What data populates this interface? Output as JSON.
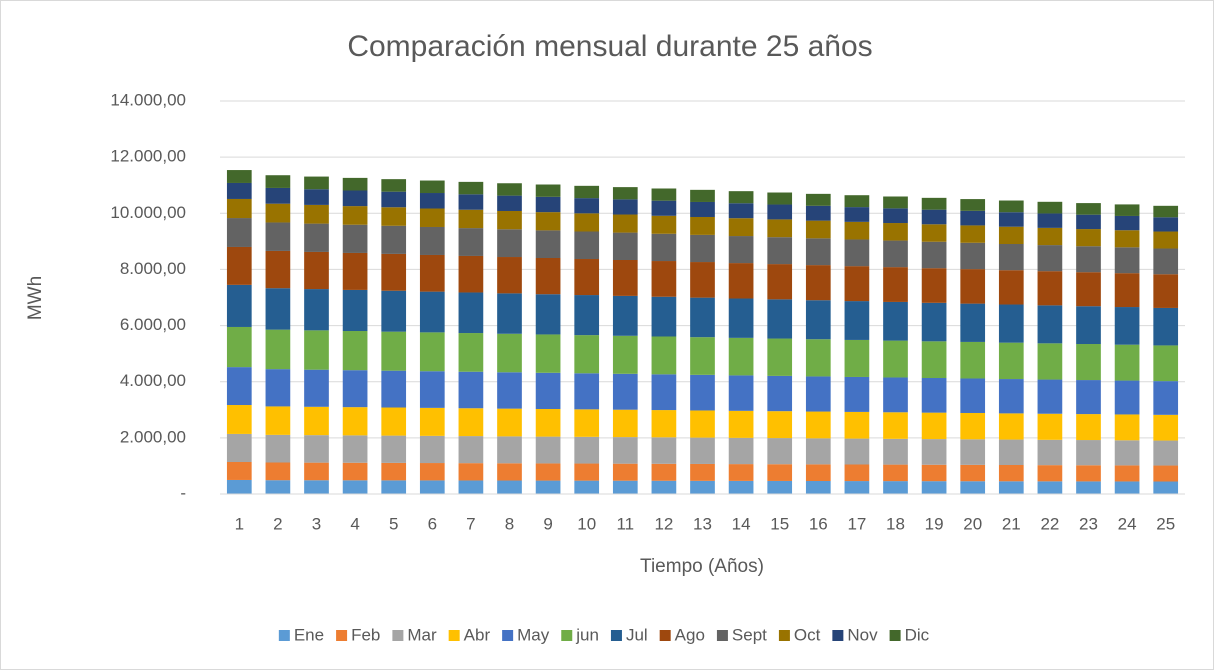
{
  "chart_data": {
    "type": "bar",
    "stacked": true,
    "title": "Comparación mensual durante 25 años",
    "xlabel": "Tiempo (Años)",
    "ylabel": "MWh",
    "categories": [
      "1",
      "2",
      "3",
      "4",
      "5",
      "6",
      "7",
      "8",
      "9",
      "10",
      "11",
      "12",
      "13",
      "14",
      "15",
      "16",
      "17",
      "18",
      "19",
      "20",
      "21",
      "22",
      "23",
      "24",
      "25"
    ],
    "ylim": [
      0,
      14000
    ],
    "yticks": [
      {
        "value": 0,
        "label": "-"
      },
      {
        "value": 2000,
        "label": "2.000,00"
      },
      {
        "value": 4000,
        "label": "4.000,00"
      },
      {
        "value": 6000,
        "label": "6.000,00"
      },
      {
        "value": 8000,
        "label": "8.000,00"
      },
      {
        "value": 10000,
        "label": "10.000,00"
      },
      {
        "value": 12000,
        "label": "12.000,00"
      },
      {
        "value": 14000,
        "label": "14.000,00"
      }
    ],
    "grid": true,
    "legend": "bottom",
    "series": [
      {
        "name": "Ene",
        "color": "#5b9bd5",
        "values": [
          500,
          492,
          490,
          488,
          486,
          484,
          482,
          480,
          478,
          476,
          474,
          472,
          469,
          467,
          465,
          463,
          461,
          459,
          457,
          455,
          453,
          451,
          449,
          447,
          445
        ]
      },
      {
        "name": "Feb",
        "color": "#ed7d31",
        "values": [
          640,
          630,
          627,
          625,
          622,
          619,
          617,
          614,
          611,
          609,
          606,
          604,
          601,
          598,
          596,
          593,
          590,
          588,
          585,
          583,
          580,
          577,
          575,
          572,
          569
        ]
      },
      {
        "name": "Mar",
        "color": "#a5a5a5",
        "values": [
          1000,
          984,
          980,
          976,
          972,
          968,
          964,
          959,
          955,
          951,
          947,
          943,
          939,
          935,
          931,
          927,
          923,
          918,
          914,
          910,
          906,
          902,
          898,
          894,
          890
        ]
      },
      {
        "name": "Abr",
        "color": "#ffc000",
        "values": [
          1030,
          1014,
          1009,
          1005,
          1001,
          997,
          992,
          988,
          984,
          980,
          976,
          971,
          967,
          963,
          959,
          954,
          950,
          946,
          942,
          938,
          933,
          929,
          925,
          921,
          916
        ]
      },
      {
        "name": "May",
        "color": "#4472c4",
        "values": [
          1350,
          1328,
          1323,
          1317,
          1312,
          1306,
          1301,
          1295,
          1290,
          1284,
          1279,
          1273,
          1268,
          1262,
          1256,
          1251,
          1245,
          1240,
          1234,
          1229,
          1223,
          1218,
          1212,
          1207,
          1201
        ]
      },
      {
        "name": "jun",
        "color": "#70ad47",
        "values": [
          1430,
          1407,
          1401,
          1395,
          1390,
          1384,
          1378,
          1372,
          1366,
          1360,
          1354,
          1348,
          1343,
          1337,
          1331,
          1325,
          1319,
          1313,
          1307,
          1302,
          1296,
          1290,
          1284,
          1278,
          1272
        ]
      },
      {
        "name": "Jul",
        "color": "#255e91",
        "values": [
          1500,
          1476,
          1470,
          1464,
          1458,
          1451,
          1445,
          1439,
          1433,
          1427,
          1421,
          1415,
          1408,
          1402,
          1396,
          1390,
          1384,
          1378,
          1371,
          1365,
          1359,
          1353,
          1347,
          1341,
          1335
        ]
      },
      {
        "name": "Ago",
        "color": "#9e480e",
        "values": [
          1350,
          1328,
          1323,
          1317,
          1312,
          1306,
          1301,
          1295,
          1290,
          1284,
          1279,
          1273,
          1268,
          1262,
          1256,
          1251,
          1245,
          1240,
          1234,
          1229,
          1223,
          1218,
          1212,
          1207,
          1201
        ]
      },
      {
        "name": "Sept",
        "color": "#636363",
        "values": [
          1030,
          1014,
          1009,
          1005,
          1001,
          997,
          992,
          988,
          984,
          980,
          976,
          971,
          967,
          963,
          959,
          954,
          950,
          946,
          942,
          938,
          933,
          929,
          925,
          921,
          916
        ]
      },
      {
        "name": "Oct",
        "color": "#997300",
        "values": [
          680,
          669,
          666,
          664,
          661,
          658,
          655,
          652,
          650,
          647,
          644,
          641,
          638,
          636,
          633,
          630,
          627,
          625,
          622,
          619,
          616,
          613,
          611,
          608,
          605
        ]
      },
      {
        "name": "Nov",
        "color": "#264478",
        "values": [
          570,
          561,
          559,
          556,
          554,
          552,
          549,
          547,
          545,
          542,
          540,
          538,
          535,
          533,
          530,
          528,
          526,
          523,
          521,
          519,
          516,
          514,
          512,
          509,
          507
        ]
      },
      {
        "name": "Dic",
        "color": "#43682b",
        "values": [
          460,
          453,
          451,
          449,
          447,
          445,
          443,
          441,
          439,
          438,
          436,
          434,
          432,
          430,
          428,
          426,
          424,
          422,
          421,
          419,
          417,
          415,
          413,
          411,
          409
        ]
      }
    ]
  }
}
